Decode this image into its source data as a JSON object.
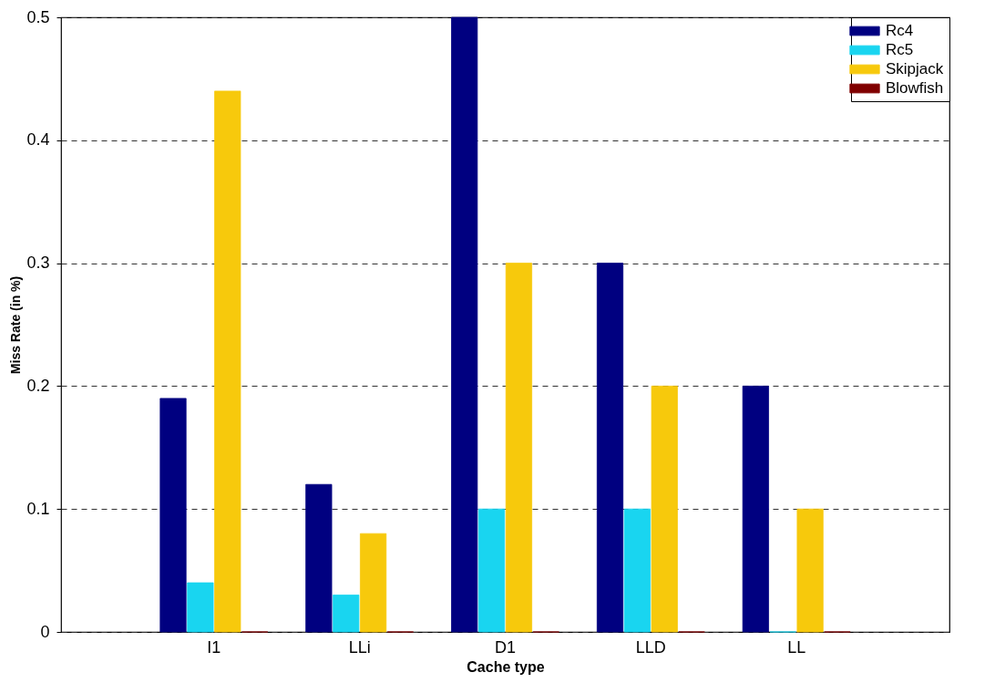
{
  "chart_data": {
    "type": "bar",
    "xlabel": "Cache type",
    "ylabel": "Miss Rate (in %)",
    "categories": [
      "I1",
      "LLi",
      "D1",
      "LLD",
      "LL"
    ],
    "series": [
      {
        "name": "Rc4",
        "color": "#000080",
        "values": [
          0.19,
          0.12,
          0.5,
          0.3,
          0.2
        ]
      },
      {
        "name": "Rc5",
        "color": "#19d5f0",
        "values": [
          0.04,
          0.03,
          0.1,
          0.1,
          0
        ]
      },
      {
        "name": "Skipjack",
        "color": "#f7c90c",
        "values": [
          0.44,
          0.08,
          0.3,
          0.2,
          0.1
        ]
      },
      {
        "name": "Blowfish",
        "color": "#800000",
        "values": [
          0,
          0,
          0,
          0,
          0
        ]
      }
    ],
    "ylim": [
      0,
      0.5
    ],
    "yticks": [
      0,
      0.1,
      0.2,
      0.3,
      0.4,
      0.5
    ],
    "grid": "y",
    "legend": "top right"
  }
}
